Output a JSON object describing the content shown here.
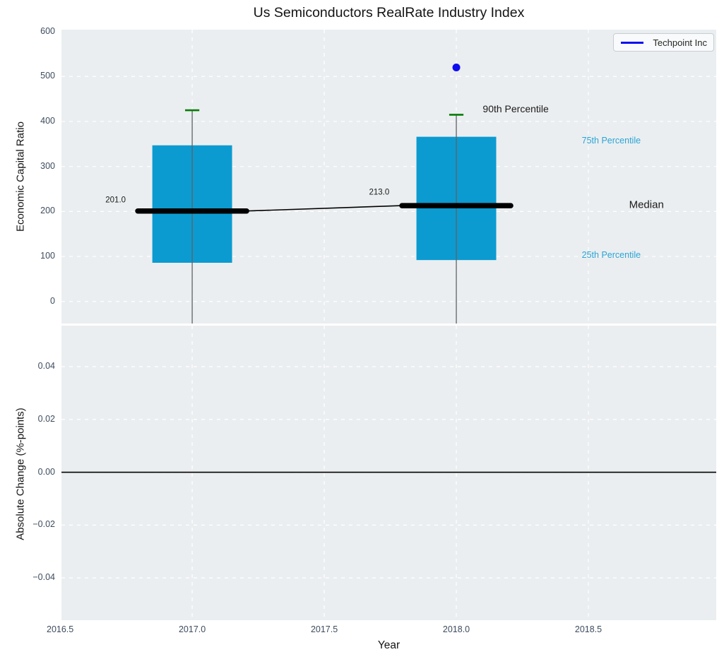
{
  "title": "Us Semiconductors RealRate Industry Index",
  "xlabel": "Year",
  "panels": {
    "top": {
      "ylabel": "Economic Capital Ratio"
    },
    "bottom": {
      "ylabel": "Absolute Change (%-points)"
    }
  },
  "legend": {
    "label": "Techpoint Inc"
  },
  "colors": {
    "figure_bg": "#ffffff",
    "axes_bg": "#ebeef0",
    "grid": "#ffffff",
    "box_fill": "#0b9bd1",
    "cap_green": "#077d07",
    "whisker_gray": "#5f6368",
    "median_black": "#000000",
    "point_blue": "#0d0df0",
    "tick_label": "#3d4c5e",
    "percentile_blue": "#2aa5d6",
    "annotation_black": "#1a1a1a",
    "zero_line": "#000000"
  },
  "chart_data": {
    "type": "boxplot",
    "title": "Us Semiconductors RealRate Industry Index",
    "xlabel": "Year",
    "xlim": [
      2016.505,
      2018.984
    ],
    "xticks": [
      {
        "v": 2016.5,
        "label": "2016.5"
      },
      {
        "v": 2017.0,
        "label": "2017.0"
      },
      {
        "v": 2017.5,
        "label": "2017.5"
      },
      {
        "v": 2018.0,
        "label": "2018.0"
      },
      {
        "v": 2018.5,
        "label": "2018.5"
      }
    ],
    "top_panel": {
      "ylabel": "Economic Capital Ratio",
      "ylim": [
        -49,
        604
      ],
      "yticks": [
        {
          "v": 0,
          "label": "0"
        },
        {
          "v": 100,
          "label": "100"
        },
        {
          "v": 200,
          "label": "200"
        },
        {
          "v": 300,
          "label": "300"
        },
        {
          "v": 400,
          "label": "400"
        },
        {
          "v": 500,
          "label": "500"
        },
        {
          "v": 600,
          "label": "600"
        }
      ],
      "box_halfwidth_years": 0.151,
      "median_bar_halfwidth_years": 0.206,
      "cap_halfwidth_years": 0.027,
      "boxes": [
        {
          "year": 2017,
          "p90": 425,
          "p75": 347,
          "median": 201,
          "p25": 86,
          "median_label": "201.0",
          "whisker_low": "below axis (clipped)"
        },
        {
          "year": 2018,
          "p90": 415,
          "p75": 366,
          "median": 213,
          "p25": 92,
          "median_label": "213.0",
          "whisker_low": "below axis (clipped)"
        }
      ],
      "median_trend_line": [
        {
          "year": 2017.206,
          "value": 201
        },
        {
          "year": 2017.794,
          "value": 213
        }
      ],
      "company_series": {
        "name": "Techpoint Inc",
        "points": [
          {
            "year": 2018,
            "value": 520
          }
        ]
      },
      "annotations": [
        {
          "text": "90th Percentile",
          "year": 2018.1,
          "value": 428,
          "color": "#1a1a1a",
          "size": 14,
          "anchor": "start"
        },
        {
          "text": "75th Percentile",
          "year": 2018.475,
          "value": 357,
          "color": "#2aa5d6",
          "size": 12.5,
          "anchor": "start"
        },
        {
          "text": "Median",
          "year": 2018.654,
          "value": 215,
          "color": "#1a1a1a",
          "size": 15,
          "anchor": "start"
        },
        {
          "text": "25th Percentile",
          "year": 2018.475,
          "value": 103,
          "color": "#2aa5d6",
          "size": 12.5,
          "anchor": "start"
        },
        {
          "text": "201.0",
          "year": 2016.71,
          "value": 224,
          "color": "#1a1a1a",
          "size": 11.5,
          "anchor": "middle"
        },
        {
          "text": "213.0",
          "year": 2017.708,
          "value": 241,
          "color": "#1a1a1a",
          "size": 11.5,
          "anchor": "middle"
        }
      ]
    },
    "bottom_panel": {
      "ylabel": "Absolute Change (%-points)",
      "ylim": [
        -0.056,
        0.0555
      ],
      "yticks": [
        {
          "v": 0.04,
          "label": "0.04"
        },
        {
          "v": 0.02,
          "label": "0.02"
        },
        {
          "v": 0.0,
          "label": "0.00"
        },
        {
          "v": -0.02,
          "label": "−0.02"
        },
        {
          "v": -0.04,
          "label": "−0.04"
        }
      ],
      "zero_line": 0.0,
      "series": []
    }
  }
}
